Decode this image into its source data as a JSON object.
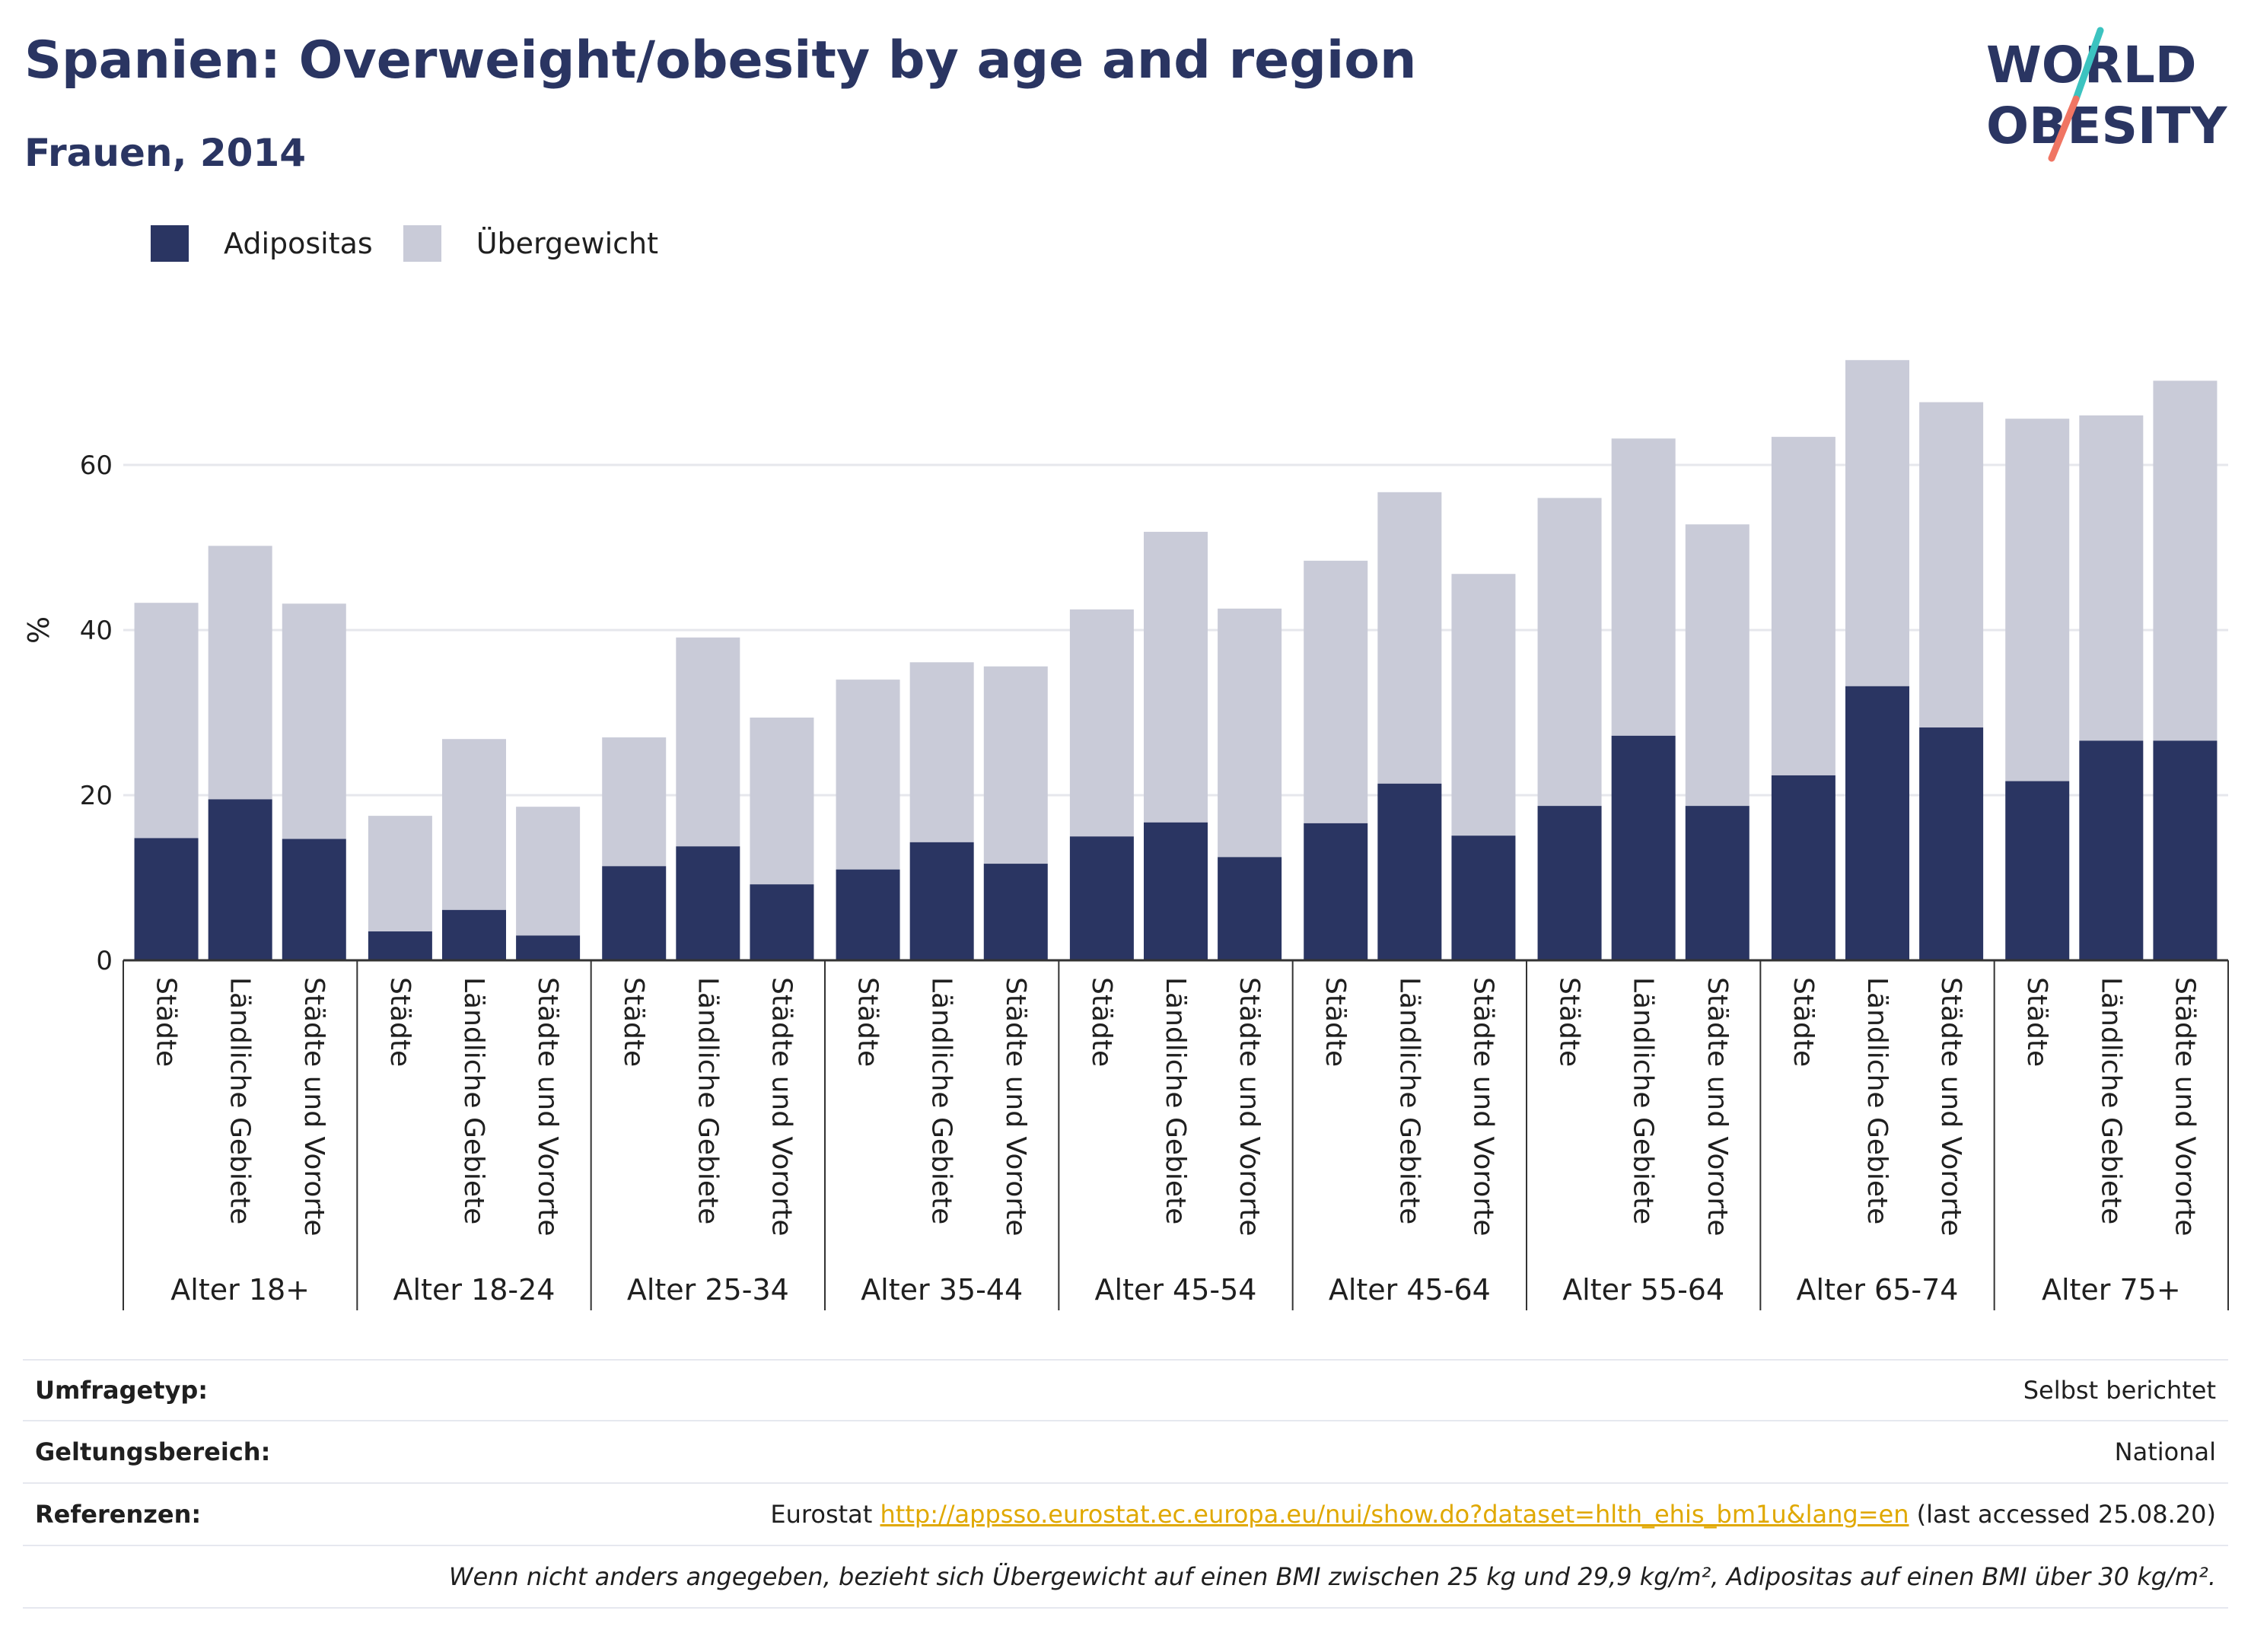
{
  "title": "Spanien: Overweight/obesity by age and region",
  "subtitle": "Frauen, 2014",
  "logo": {
    "line1": "WORLD",
    "line2": "OBESITY"
  },
  "colors": {
    "obesity": "#2a3562",
    "overweight": "#c9cbd8",
    "title": "#2a3562",
    "link": "#e0a800"
  },
  "legend": [
    {
      "label": "Adipositas",
      "color": "#2a3562"
    },
    {
      "label": "Übergewicht",
      "color": "#c9cbd8"
    }
  ],
  "chart_data": {
    "type": "bar",
    "stacked": true,
    "ylabel": "%",
    "ylim": [
      0,
      75
    ],
    "yticks": [
      0,
      20,
      40,
      60
    ],
    "grid": true,
    "legend_position": "top-left",
    "groups": [
      {
        "label": "Alter 18+",
        "categories": [
          "Städte",
          "Ländliche Gebiete",
          "Städte und Vororte"
        ],
        "obesity": [
          14.8,
          19.5,
          14.7
        ],
        "overweight": [
          28.5,
          30.7,
          28.5
        ]
      },
      {
        "label": "Alter 18-24",
        "categories": [
          "Städte",
          "Ländliche Gebiete",
          "Städte und Vororte"
        ],
        "obesity": [
          3.5,
          6.1,
          3.0
        ],
        "overweight": [
          14.0,
          20.7,
          15.6
        ]
      },
      {
        "label": "Alter 25-34",
        "categories": [
          "Städte",
          "Ländliche Gebiete",
          "Städte und Vororte"
        ],
        "obesity": [
          11.4,
          13.8,
          9.2
        ],
        "overweight": [
          15.6,
          25.3,
          20.2
        ]
      },
      {
        "label": "Alter 35-44",
        "categories": [
          "Städte",
          "Ländliche Gebiete",
          "Städte und Vororte"
        ],
        "obesity": [
          11.0,
          14.3,
          11.7
        ],
        "overweight": [
          23.0,
          21.8,
          23.9
        ]
      },
      {
        "label": "Alter 45-54",
        "categories": [
          "Städte",
          "Ländliche Gebiete",
          "Städte und Vororte"
        ],
        "obesity": [
          15.0,
          16.7,
          12.5
        ],
        "overweight": [
          27.5,
          35.2,
          30.1
        ]
      },
      {
        "label": "Alter 45-64",
        "categories": [
          "Städte",
          "Ländliche Gebiete",
          "Städte und Vororte"
        ],
        "obesity": [
          16.6,
          21.4,
          15.1
        ],
        "overweight": [
          31.8,
          35.3,
          31.7
        ]
      },
      {
        "label": "Alter 55-64",
        "categories": [
          "Städte",
          "Ländliche Gebiete",
          "Städte und Vororte"
        ],
        "obesity": [
          18.7,
          27.2,
          18.7
        ],
        "overweight": [
          37.3,
          36.0,
          34.1
        ]
      },
      {
        "label": "Alter 65-74",
        "categories": [
          "Städte",
          "Ländliche Gebiete",
          "Städte und Vororte"
        ],
        "obesity": [
          22.4,
          33.2,
          28.2
        ],
        "overweight": [
          41.0,
          39.5,
          39.4
        ]
      },
      {
        "label": "Alter 75+",
        "categories": [
          "Städte",
          "Ländliche Gebiete",
          "Städte und Vororte"
        ],
        "obesity": [
          21.7,
          26.6,
          26.6
        ],
        "overweight": [
          43.9,
          39.4,
          43.6
        ]
      }
    ]
  },
  "info": {
    "survey_label": "Umfragetyp:",
    "survey_value": "Selbst berichtet",
    "scope_label": "Geltungsbereich:",
    "scope_value": "National",
    "refs_label": "Referenzen:",
    "refs_prefix": "Eurostat",
    "refs_link": "http://appsso.eurostat.ec.europa.eu/nui/show.do?dataset=hlth_ehis_bm1u&lang=en",
    "refs_suffix": "(last accessed 25.08.20)",
    "note": "Wenn nicht anders angegeben, bezieht sich Übergewicht auf einen BMI zwischen 25 kg und 29,9 kg/m², Adipositas auf einen BMI über 30 kg/m²."
  }
}
